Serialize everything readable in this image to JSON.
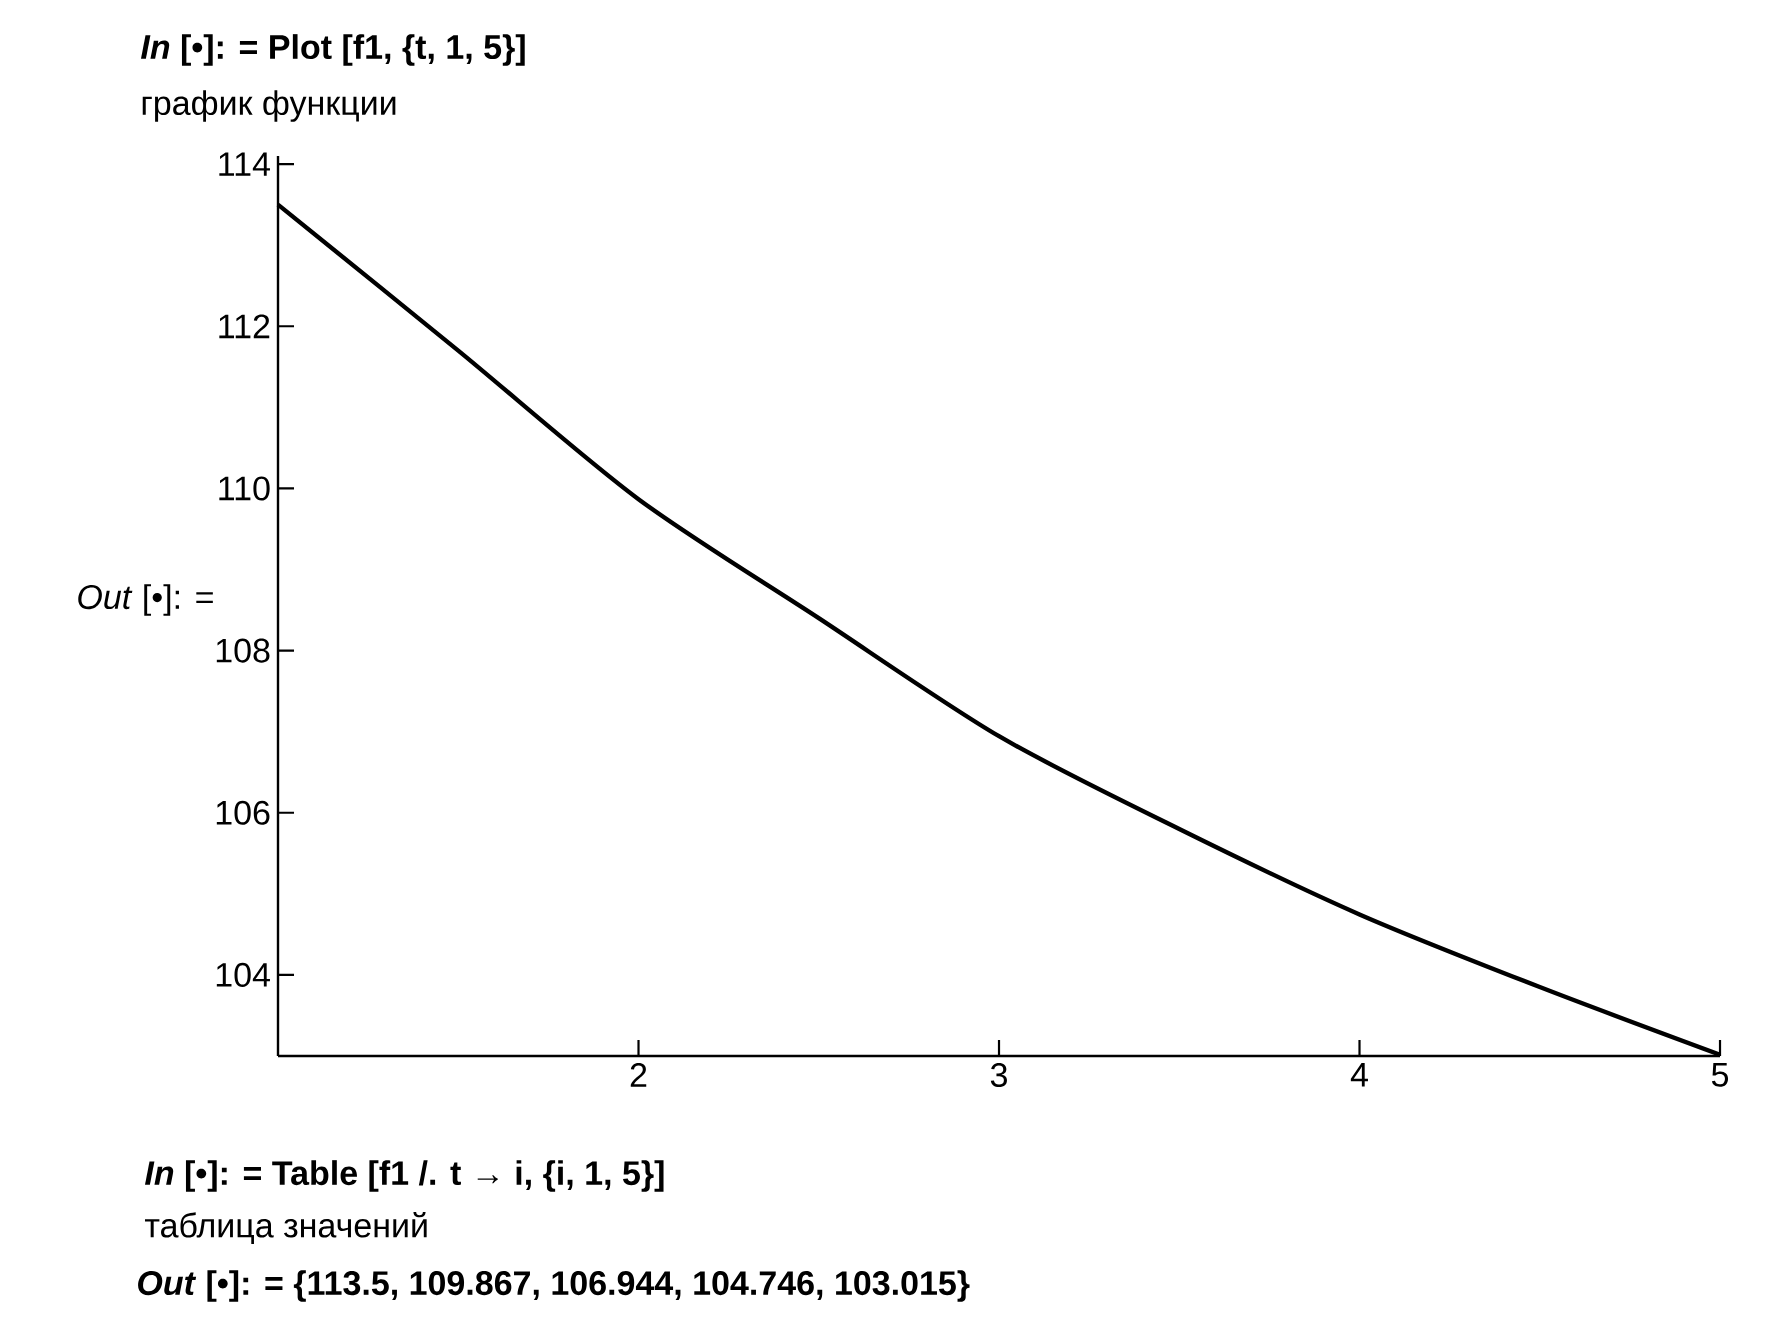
{
  "chart_data": {
    "type": "line",
    "title": "*In* [•]: = Plot [f1, {t, 1, 5}]",
    "subtitle": "график функции",
    "ylabel": "*Out* [•]: =",
    "x": [
      1,
      1.5,
      2,
      2.5,
      3,
      3.5,
      4,
      4.5,
      5
    ],
    "series": [
      {
        "color": "#000000",
        "line_style": "solid",
        "values": [
          113.5,
          111.7,
          109.867,
          108.4,
          106.944,
          105.8,
          104.746,
          103.85,
          103.015
        ]
      }
    ],
    "xlim": [
      1,
      5
    ],
    "ylim": [
      103,
      114.1
    ],
    "xticks": [
      2,
      3,
      4,
      5
    ],
    "yticks": [
      104,
      106,
      108,
      110,
      112,
      114
    ],
    "annotations": [
      "*In* [•]: = Table [f1 /. t → i, {i, 1, 5}]",
      "таблица значений",
      "*Out* [•]: = {113.5, 109.867, 106.944, 104.746, 103.015}"
    ]
  }
}
